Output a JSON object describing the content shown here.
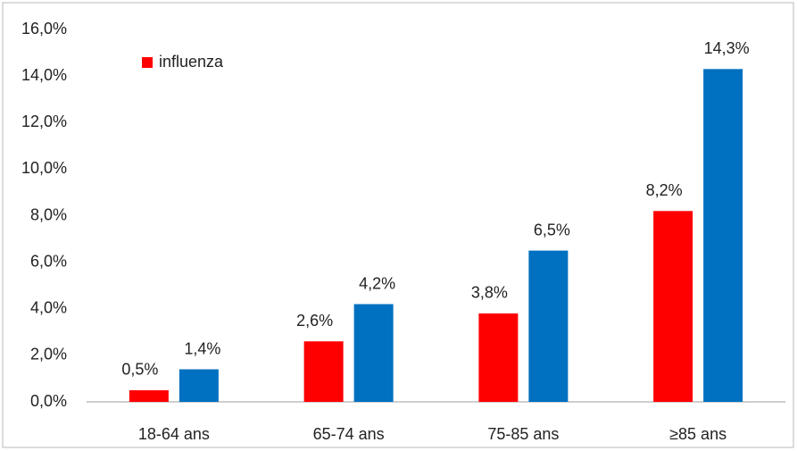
{
  "chart_data": {
    "type": "bar",
    "categories": [
      "18-64 ans",
      "65-74 ans",
      "75-85 ans",
      "≥85 ans"
    ],
    "series": [
      {
        "name": "influenza",
        "color": "#ff0000",
        "values": [
          0.5,
          2.6,
          3.8,
          8.2
        ],
        "value_labels": [
          "0,5%",
          "2,6%",
          "3,8%",
          "8,2%"
        ]
      },
      {
        "color": "#0070c0",
        "values": [
          1.4,
          4.2,
          6.5,
          14.3
        ],
        "value_labels": [
          "1,4%",
          "4,2%",
          "6,5%",
          "14,3%"
        ]
      }
    ],
    "ylim": [
      0,
      16
    ],
    "yticks": [
      {
        "value": 0,
        "label": "0,0%"
      },
      {
        "value": 2,
        "label": "2,0%"
      },
      {
        "value": 4,
        "label": "4,0%"
      },
      {
        "value": 6,
        "label": "6,0%"
      },
      {
        "value": 8,
        "label": "8,0%"
      },
      {
        "value": 10,
        "label": "10,0%"
      },
      {
        "value": 12,
        "label": "12,0%"
      },
      {
        "value": 14,
        "label": "14,0%"
      },
      {
        "value": 16,
        "label": "16,0%"
      }
    ],
    "grid": false,
    "legend": "top-left"
  }
}
